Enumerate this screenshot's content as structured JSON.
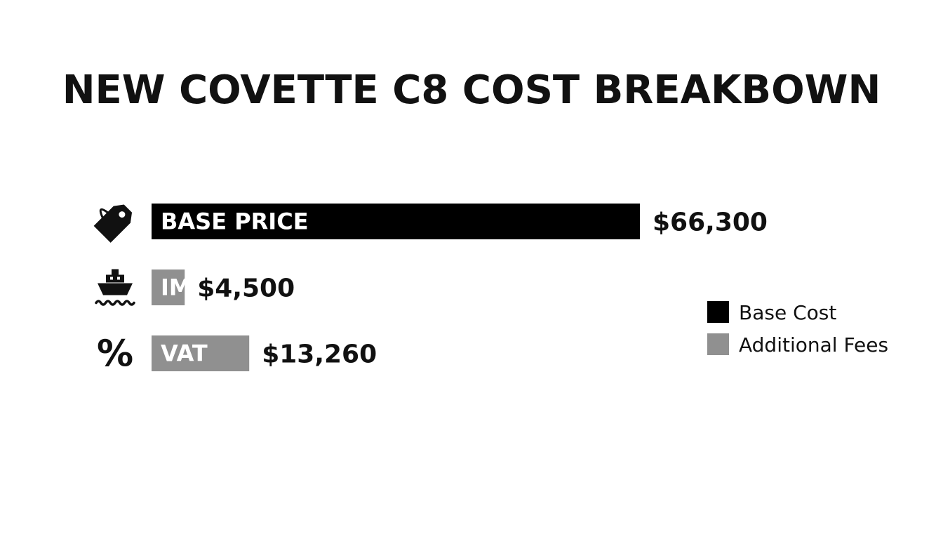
{
  "chart_data": {
    "type": "bar",
    "orientation": "horizontal",
    "title": "NEW COVETTE C8 COST BREAKBOWN",
    "categories": [
      "BASE PRICE",
      "IMPORT DUTY",
      "VAT"
    ],
    "values": [
      66300,
      4500,
      13260
    ],
    "value_labels": [
      "$66,300",
      "$4,500",
      "$13,260"
    ],
    "groups": [
      "Base Cost",
      "Additional Fees",
      "Additional Fees"
    ],
    "icons": [
      "price-tag-icon",
      "ship-icon",
      "percent-icon"
    ],
    "legend": {
      "position": "right",
      "entries": [
        {
          "name": "Base Cost",
          "color": "#000000"
        },
        {
          "name": "Additional Fees",
          "color": "#909090"
        }
      ]
    },
    "grid": false
  }
}
